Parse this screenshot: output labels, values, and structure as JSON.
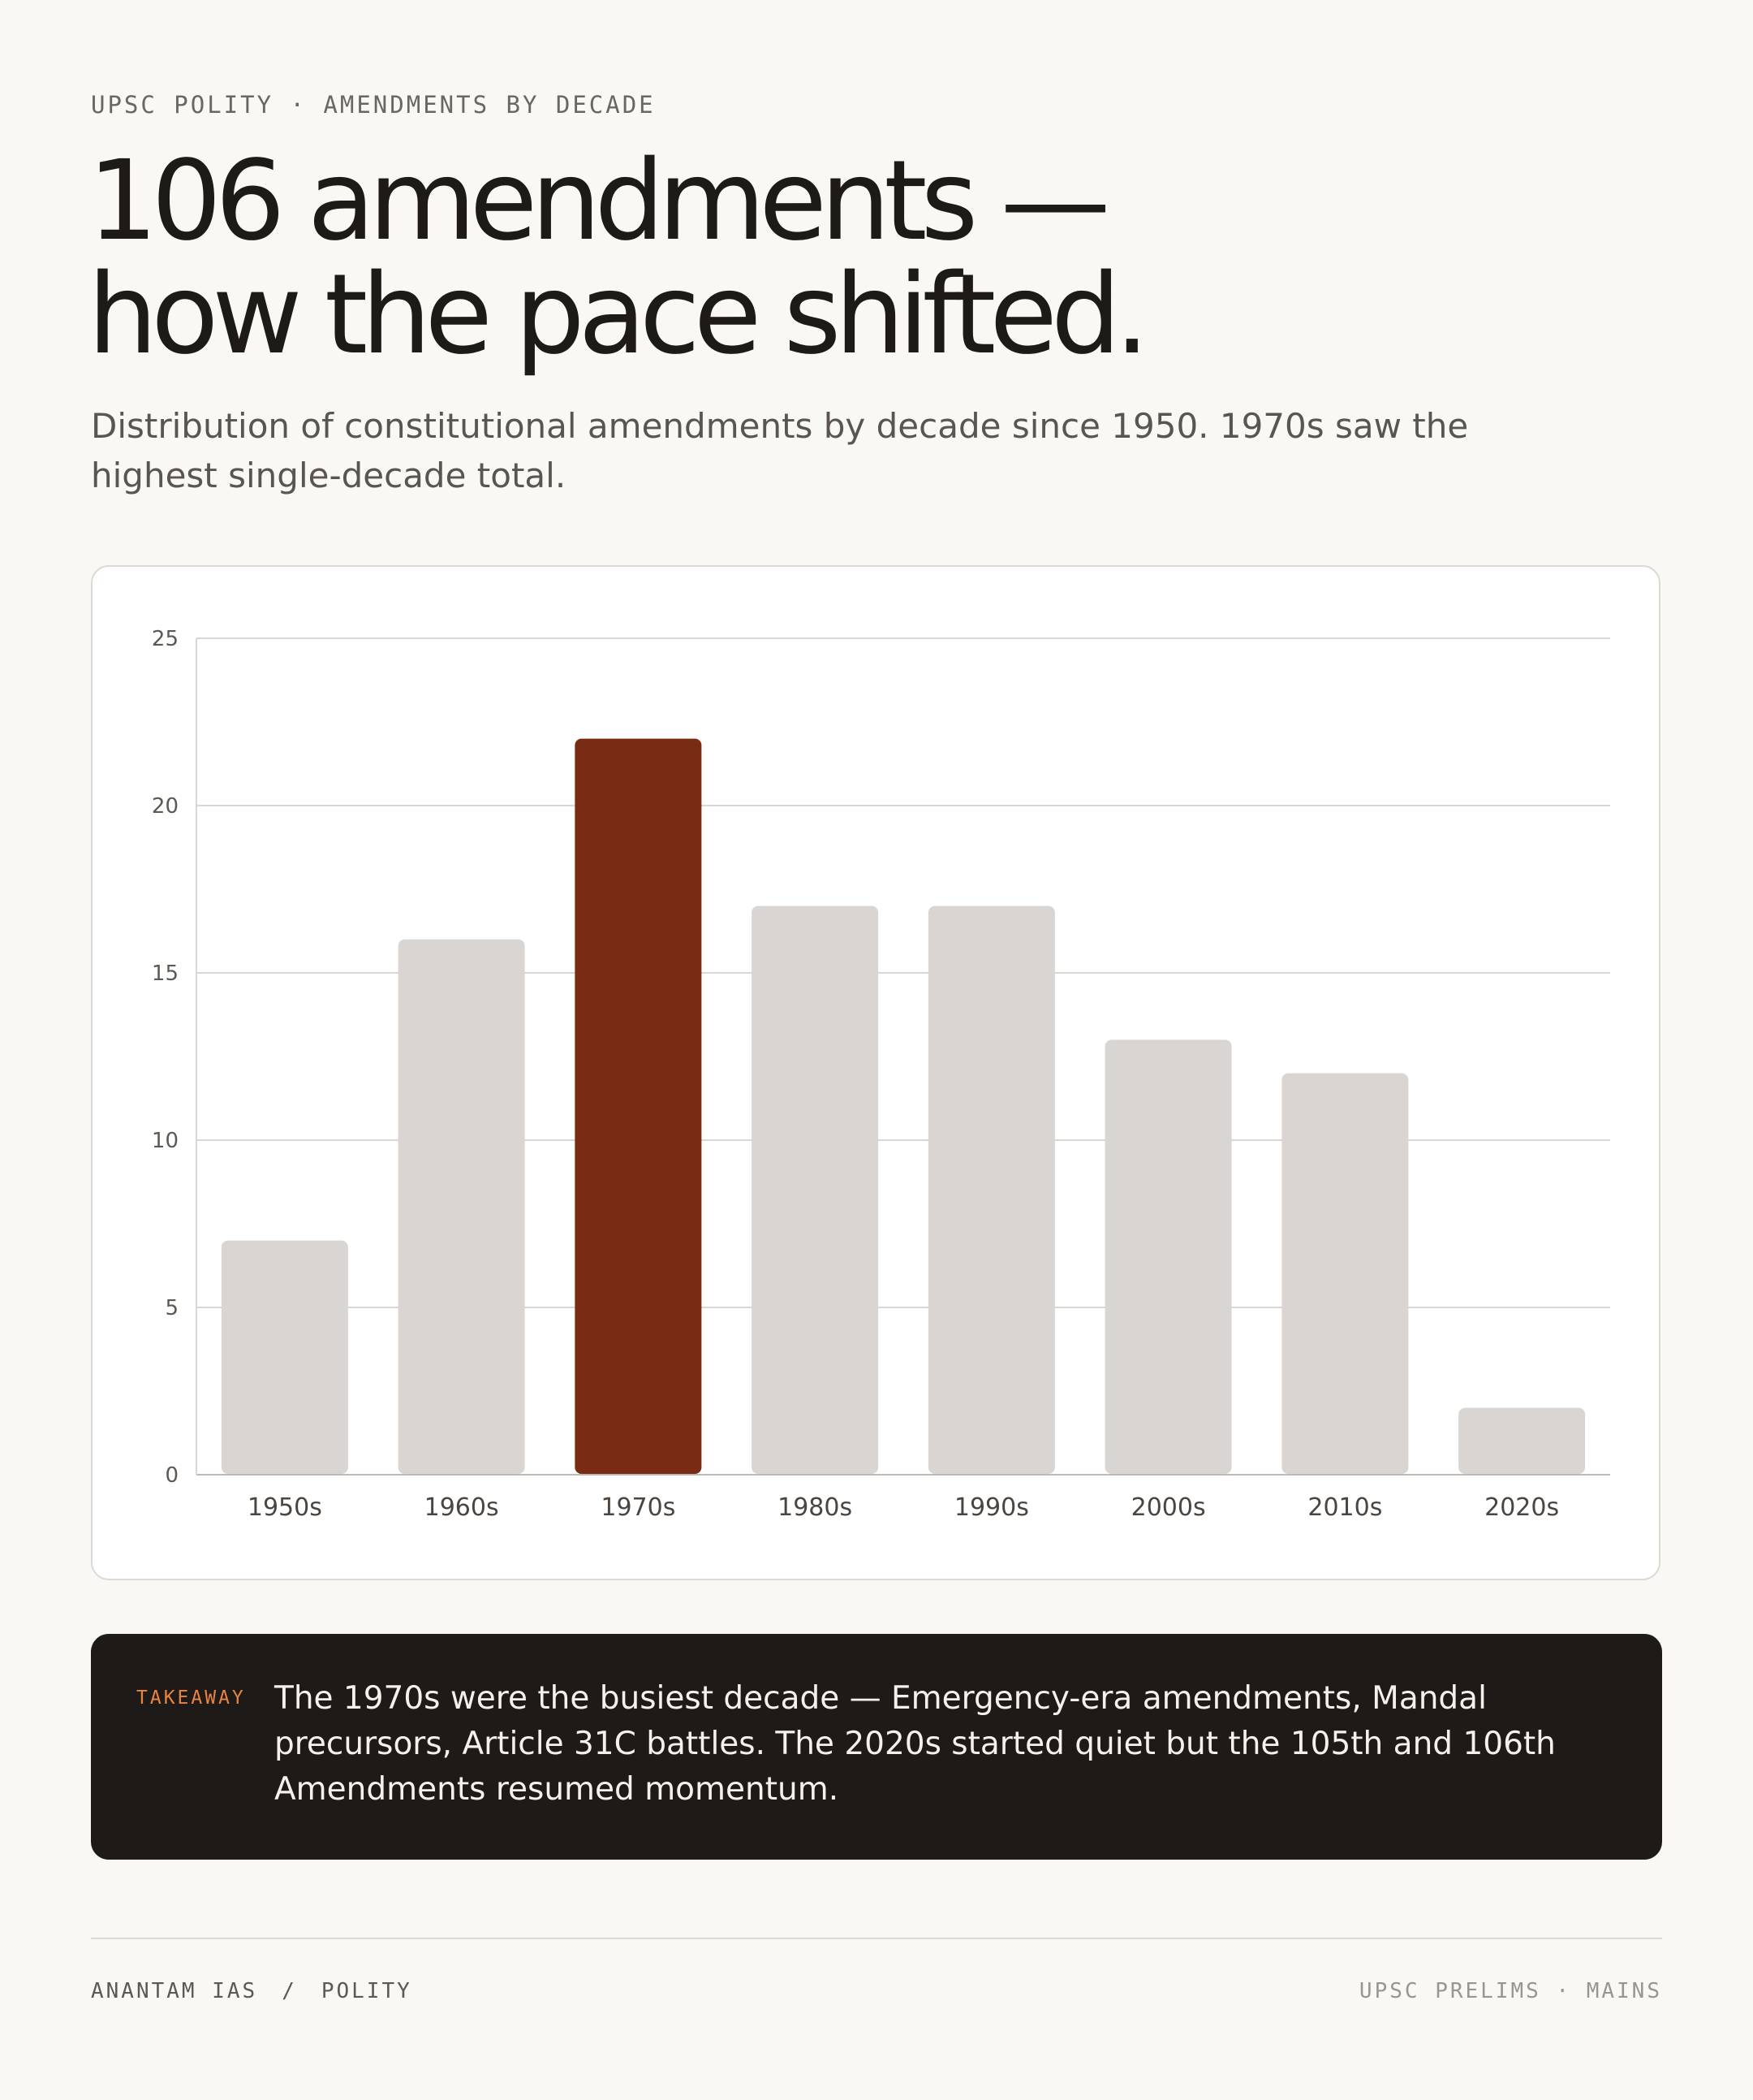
{
  "eyebrow": "UPSC POLITY · AMENDMENTS BY DECADE",
  "title_line1": "106 amendments —",
  "title_line2": "how the pace shifted.",
  "subtitle": "Distribution of constitutional amendments by decade since 1950. 1970s saw the highest single-decade total.",
  "colors": {
    "background": "#f9f8f4",
    "bar_default": "#d9d5d2",
    "bar_highlight": "#7a2b14",
    "takeaway_bg": "#1d1a17",
    "takeaway_label": "#e9853f"
  },
  "chart_data": {
    "type": "bar",
    "categories": [
      "1950s",
      "1960s",
      "1970s",
      "1980s",
      "1990s",
      "2000s",
      "2010s",
      "2020s"
    ],
    "values": [
      7,
      16,
      22,
      17,
      17,
      13,
      12,
      2
    ],
    "highlight": "1970s",
    "ylim": [
      0,
      25
    ],
    "yticks": [
      0,
      5,
      10,
      15,
      20,
      25
    ],
    "grid": true,
    "title": "",
    "xlabel": "",
    "ylabel": ""
  },
  "takeaway": {
    "label": "TAKEAWAY",
    "text": "The 1970s were the busiest decade — Emergency-era amendments, Mandal precursors, Article 31C battles. The 2020s started quiet but the 105th and 106th Amendments resumed momentum."
  },
  "footer": {
    "brand": "ANANTAM IAS",
    "separator": "/",
    "section": "POLITY",
    "right": "UPSC PRELIMS · MAINS"
  }
}
